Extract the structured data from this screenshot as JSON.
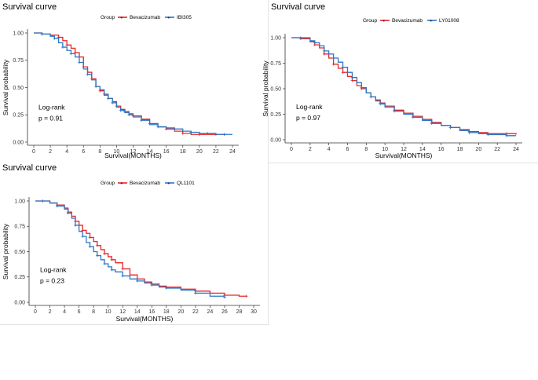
{
  "chart_data": [
    {
      "type": "line",
      "title": "Survival curve",
      "xlabel": "Survival(MONTHS)",
      "ylabel": "Survival probability",
      "xlim": [
        0,
        24
      ],
      "ylim": [
        0,
        1
      ],
      "xticks": [
        "0",
        "2",
        "4",
        "6",
        "8",
        "10",
        "12",
        "14",
        "16",
        "18",
        "20",
        "22",
        "24"
      ],
      "yticks": [
        "0.00",
        "0.25",
        "0.50",
        "0.75",
        "1.00"
      ],
      "legend_title": "Group",
      "annotation": [
        "Log-rank",
        "p = 0.91"
      ],
      "colors": {
        "Bevacizumab": "#e8262b",
        "IBI305": "#2b78c6"
      },
      "series": [
        {
          "name": "Bevacizumab",
          "x": [
            0,
            1,
            2,
            3,
            3.5,
            4,
            4.5,
            5,
            5.5,
            6,
            6.5,
            7,
            7.5,
            8,
            8.5,
            9,
            9.5,
            10,
            10.5,
            11,
            11.5,
            12,
            13,
            14,
            15,
            16,
            17,
            18,
            19,
            20,
            21,
            22,
            23.3
          ],
          "y": [
            1,
            0.99,
            0.98,
            0.96,
            0.93,
            0.89,
            0.86,
            0.82,
            0.78,
            0.69,
            0.64,
            0.58,
            0.51,
            0.47,
            0.43,
            0.4,
            0.37,
            0.33,
            0.3,
            0.28,
            0.26,
            0.24,
            0.21,
            0.17,
            0.14,
            0.12,
            0.1,
            0.08,
            0.07,
            0.07,
            0.07,
            0.07,
            0.07
          ]
        },
        {
          "name": "IBI305",
          "x": [
            0,
            1,
            2,
            2.5,
            3,
            3.5,
            4,
            4.5,
            5,
            5.5,
            6,
            6.5,
            7,
            7.5,
            8,
            8.5,
            9,
            9.5,
            10,
            10.5,
            11,
            11.5,
            12,
            13,
            14,
            15,
            16,
            17,
            18,
            19,
            20,
            21,
            22,
            23,
            24
          ],
          "y": [
            1,
            0.99,
            0.97,
            0.95,
            0.91,
            0.87,
            0.84,
            0.81,
            0.78,
            0.73,
            0.67,
            0.62,
            0.57,
            0.51,
            0.48,
            0.44,
            0.4,
            0.36,
            0.32,
            0.29,
            0.27,
            0.25,
            0.23,
            0.2,
            0.16,
            0.14,
            0.13,
            0.12,
            0.1,
            0.09,
            0.08,
            0.08,
            0.07,
            0.07,
            0.07
          ]
        }
      ]
    },
    {
      "type": "line",
      "title": "Survival curve",
      "xlabel": "Survival(MONTHS)",
      "ylabel": "Survival probability",
      "xlim": [
        0,
        24
      ],
      "ylim": [
        0,
        1
      ],
      "xticks": [
        "0",
        "2",
        "4",
        "6",
        "8",
        "10",
        "12",
        "14",
        "16",
        "18",
        "20",
        "22",
        "24"
      ],
      "yticks": [
        "0.00",
        "0.25",
        "0.50",
        "0.75",
        "1.00"
      ],
      "legend_title": "Group",
      "annotation": [
        "Log-rank",
        "p = 0.97"
      ],
      "colors": {
        "Bevacizumab": "#e8262b",
        "LY01008": "#2b78c6"
      },
      "series": [
        {
          "name": "Bevacizumab",
          "x": [
            0,
            1,
            2,
            2.5,
            3,
            3.5,
            4,
            4.5,
            5,
            5.5,
            6,
            6.5,
            7,
            7.5,
            8,
            8.5,
            9,
            9.5,
            10,
            11,
            12,
            13,
            14,
            15,
            16,
            17,
            18,
            19,
            20,
            21,
            22,
            23,
            24
          ],
          "y": [
            1,
            0.99,
            0.96,
            0.93,
            0.9,
            0.84,
            0.8,
            0.74,
            0.7,
            0.66,
            0.62,
            0.58,
            0.53,
            0.5,
            0.46,
            0.42,
            0.39,
            0.36,
            0.33,
            0.29,
            0.26,
            0.23,
            0.2,
            0.17,
            0.14,
            0.12,
            0.1,
            0.08,
            0.07,
            0.06,
            0.06,
            0.06,
            0.05
          ]
        },
        {
          "name": "LY01008",
          "x": [
            0,
            1,
            2,
            2.5,
            3,
            3.5,
            4,
            4.5,
            5,
            5.5,
            6,
            6.5,
            7,
            7.5,
            8,
            8.5,
            9,
            9.5,
            10,
            11,
            12,
            13,
            14,
            15,
            16,
            17,
            18,
            19,
            20,
            21,
            22,
            23,
            24
          ],
          "y": [
            1,
            1,
            0.97,
            0.95,
            0.92,
            0.87,
            0.84,
            0.8,
            0.76,
            0.71,
            0.66,
            0.61,
            0.56,
            0.51,
            0.46,
            0.42,
            0.38,
            0.35,
            0.32,
            0.28,
            0.25,
            0.22,
            0.19,
            0.16,
            0.14,
            0.12,
            0.09,
            0.07,
            0.06,
            0.05,
            0.05,
            0.04,
            0.04
          ]
        }
      ]
    },
    {
      "type": "line",
      "title": "Survival curve",
      "xlabel": "Survival(MONTHS)",
      "ylabel": "Survival probability",
      "xlim": [
        0,
        30
      ],
      "ylim": [
        0,
        1
      ],
      "xticks": [
        "0",
        "2",
        "4",
        "6",
        "8",
        "10",
        "12",
        "14",
        "16",
        "18",
        "20",
        "22",
        "24",
        "26",
        "28",
        "30"
      ],
      "yticks": [
        "0.00",
        "0.25",
        "0.50",
        "0.75",
        "1.00"
      ],
      "legend_title": "Group",
      "annotation": [
        "Log-rank",
        "p = 0.23"
      ],
      "colors": {
        "Bevacizumab": "#e8262b",
        "QL1101": "#2b78c6"
      },
      "series": [
        {
          "name": "Bevacizumab",
          "x": [
            0,
            1,
            2,
            3,
            4,
            4.5,
            5,
            5.5,
            6,
            6.5,
            7,
            7.5,
            8,
            8.5,
            9,
            9.5,
            10,
            10.5,
            11,
            12,
            13,
            14,
            15,
            16,
            17,
            18,
            20,
            22,
            24,
            26,
            28,
            29
          ],
          "y": [
            1,
            1,
            0.98,
            0.96,
            0.93,
            0.89,
            0.85,
            0.8,
            0.76,
            0.71,
            0.68,
            0.64,
            0.6,
            0.56,
            0.52,
            0.48,
            0.45,
            0.42,
            0.39,
            0.33,
            0.27,
            0.23,
            0.2,
            0.18,
            0.16,
            0.15,
            0.13,
            0.11,
            0.09,
            0.07,
            0.06,
            0.06
          ]
        },
        {
          "name": "QL1101",
          "x": [
            0,
            1,
            2,
            3,
            4,
            4.5,
            5,
            5.5,
            6,
            6.5,
            7,
            7.5,
            8,
            8.5,
            9,
            9.5,
            10,
            10.5,
            11,
            12,
            13,
            14,
            15,
            16,
            17,
            18,
            20,
            22,
            24,
            26
          ],
          "y": [
            1,
            1,
            0.98,
            0.95,
            0.92,
            0.88,
            0.83,
            0.76,
            0.7,
            0.65,
            0.59,
            0.55,
            0.5,
            0.46,
            0.42,
            0.38,
            0.35,
            0.32,
            0.3,
            0.26,
            0.23,
            0.21,
            0.19,
            0.17,
            0.15,
            0.14,
            0.12,
            0.09,
            0.06,
            0.05
          ]
        }
      ]
    }
  ]
}
